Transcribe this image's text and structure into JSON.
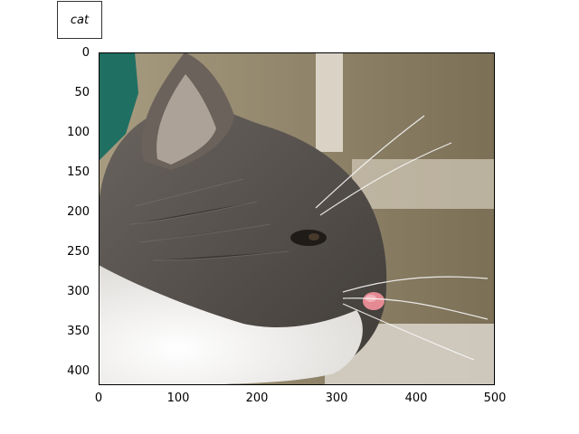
{
  "annotation": {
    "label": "cat"
  },
  "image": {
    "subject": "cat-profile-photo",
    "colors": {
      "background_wall": "#8e8064",
      "teal_chair": "#1f6f62",
      "fur_white": "#f2f1ef",
      "fur_gray": "#5f5a55",
      "nose_pink": "#e58a93"
    }
  },
  "axes": {
    "x_ticks": [
      "0",
      "100",
      "200",
      "300",
      "400",
      "500"
    ],
    "y_ticks": [
      "0",
      "50",
      "100",
      "150",
      "200",
      "250",
      "300",
      "350",
      "400"
    ],
    "xlim": [
      0,
      500
    ],
    "ylim": [
      420,
      0
    ]
  }
}
